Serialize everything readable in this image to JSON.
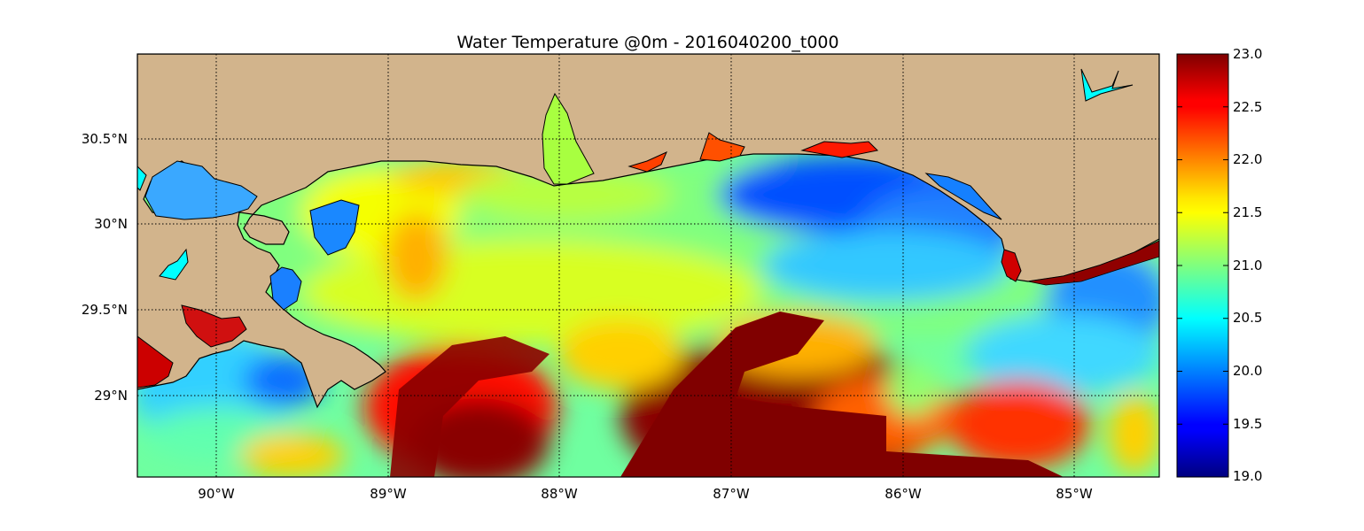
{
  "map": {
    "title": "Water Temperature @0m - 2016040200_t000",
    "lon_labels": [
      "90°W",
      "89°W",
      "88°W",
      "87°W",
      "86°W",
      "85°W"
    ],
    "lat_labels": [
      "30.5°N",
      "30°N",
      "29.5°N",
      "29°N"
    ],
    "lon_range": [
      -90.47,
      -84.52
    ],
    "lat_range": [
      28.55,
      31.0
    ],
    "lon_ticks": [
      -90,
      -89,
      -88,
      -87,
      -86,
      -85
    ],
    "lat_ticks": [
      30.5,
      30.0,
      29.5,
      29.0
    ],
    "land_color": "#d2b48c",
    "lake_color": "#00ffff",
    "grid": "dotted"
  },
  "colorbar": {
    "colormap": "jet",
    "min": 19.0,
    "max": 23.0,
    "tick_values": [
      19.0,
      19.5,
      20.0,
      20.5,
      21.0,
      21.5,
      22.0,
      22.5,
      23.0
    ],
    "labels": [
      "23.0",
      "22.5",
      "22.0",
      "21.5",
      "21.0",
      "20.5",
      "20.0",
      "19.5",
      "19.0"
    ]
  }
}
